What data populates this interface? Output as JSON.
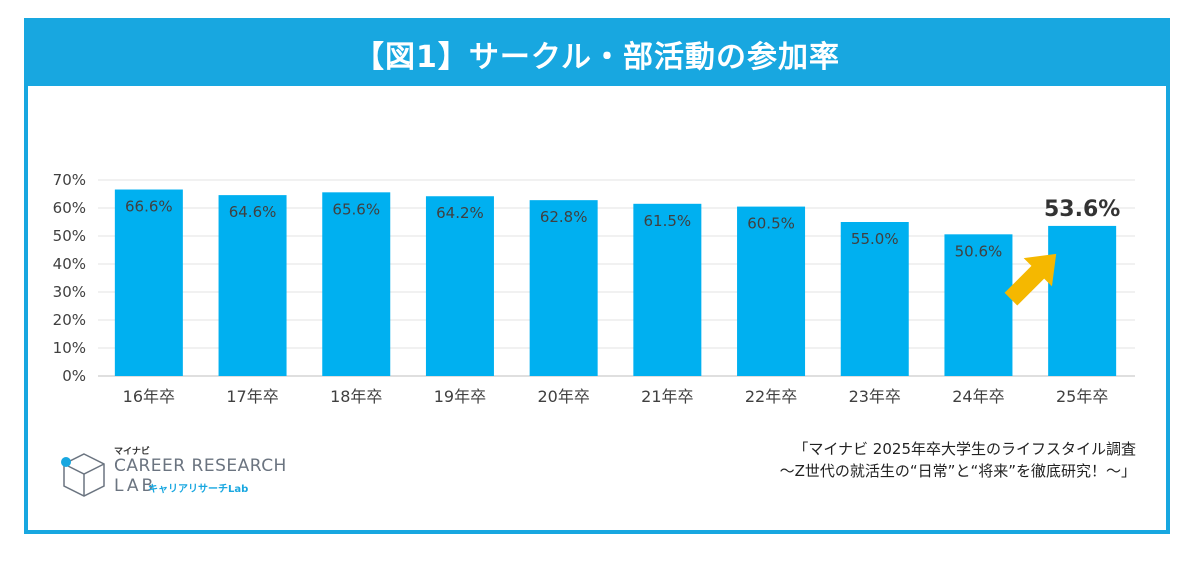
{
  "title": "【図1】サークル・部活動の参加率",
  "chart_data": {
    "type": "bar",
    "categories": [
      "16年卒",
      "17年卒",
      "18年卒",
      "19年卒",
      "20年卒",
      "21年卒",
      "22年卒",
      "23年卒",
      "24年卒",
      "25年卒"
    ],
    "values": [
      66.6,
      64.6,
      65.6,
      64.2,
      62.8,
      61.5,
      60.5,
      55.0,
      50.6,
      53.6
    ],
    "data_labels": [
      "66.6%",
      "64.6%",
      "65.6%",
      "64.2%",
      "62.8%",
      "61.5%",
      "60.5%",
      "55.0%",
      "50.6%",
      "53.6%"
    ],
    "y_ticks": [
      "0%",
      "10%",
      "20%",
      "30%",
      "40%",
      "50%",
      "60%",
      "70%"
    ],
    "ylim": [
      0,
      70
    ],
    "grid": true,
    "bar_color": "#00b0f0",
    "highlight_index": 9,
    "arrow_color": "#f5b800"
  },
  "source": {
    "line1": "「マイナビ 2025年卒大学生のライフスタイル調査",
    "line2": "～Z世代の就活生の“日常”と“将来”を徹底研究！～」"
  },
  "logo": {
    "small": "マイナビ",
    "line1": "CAREER RESEARCH",
    "line2": "LAB",
    "kana": "キャリアリサーチLab"
  },
  "colors": {
    "frame": "#18a7e0",
    "title_text": "#ffffff"
  }
}
